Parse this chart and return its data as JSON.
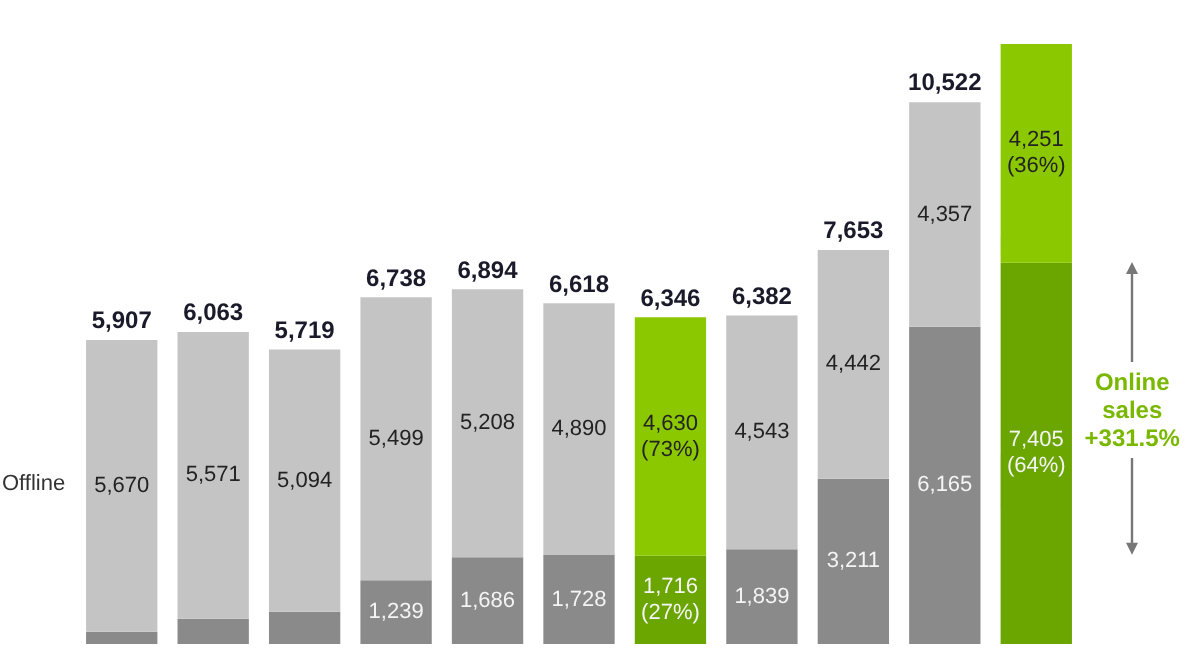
{
  "chart_data": {
    "type": "bar",
    "stacked": true,
    "categories": [
      null,
      null,
      null,
      null,
      null,
      null,
      null,
      null,
      null,
      null,
      null
    ],
    "series": [
      {
        "color": "#8a8a8a",
        "colors": [
          null,
          null,
          null,
          null,
          null,
          null,
          "#6aa500",
          null,
          null,
          null,
          "#6aa500"
        ],
        "values": [
          237,
          492,
          625,
          1239,
          1686,
          1728,
          1716,
          1839,
          3211,
          6165,
          7405
        ],
        "value_labels": [
          null,
          null,
          null,
          "1,239",
          "1,686",
          "1,728",
          "1,716\n(27%)",
          "1,839",
          "3,211",
          "6,165",
          "7,405\n(64%)"
        ]
      },
      {
        "name": "Offline",
        "color": "#c4c4c4",
        "colors": [
          null,
          null,
          null,
          null,
          null,
          null,
          "#8cc800",
          null,
          null,
          null,
          "#8cc800"
        ],
        "values": [
          5670,
          5571,
          5094,
          5499,
          5208,
          4890,
          4630,
          4543,
          4442,
          4357,
          4251
        ],
        "value_labels": [
          "5,670",
          "5,571",
          "5,094",
          "5,499",
          "5,208",
          "4,890",
          "4,630\n(73%)",
          "4,543",
          "4,442",
          "4,357",
          "4,251\n(36%)"
        ]
      }
    ],
    "totals": [
      "5,907",
      "6,063",
      "5,719",
      "6,738",
      "6,894",
      "6,618",
      "6,346",
      "6,382",
      "7,653",
      "10,522",
      null
    ],
    "annotations": [
      "Online sales +331.5%"
    ],
    "legend": false
  }
}
